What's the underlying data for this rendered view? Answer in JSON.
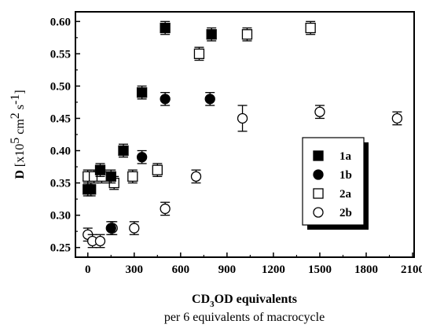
{
  "chart_data": {
    "type": "scatter",
    "title": "",
    "xlabel": "CD3OD equivalents",
    "xlabel_parts": {
      "pre": "CD",
      "sub": "3",
      "post": "OD equivalents"
    },
    "xlabel_note": "per 6 equivalents of macrocycle",
    "ylabel_parts": {
      "main": "D ",
      "open": "[x10",
      "exp": "5",
      "unit": " cm",
      "exp2": "2",
      "unit2": " s",
      "exp3": "-1",
      "close": "]"
    },
    "xlim": [
      -80,
      2110
    ],
    "ylim": [
      0.235,
      0.615
    ],
    "xticks": [
      0,
      300,
      600,
      900,
      1200,
      1500,
      1800,
      2100
    ],
    "xtick_labels": [
      "0",
      "300",
      "600",
      "900",
      "1200",
      "1500",
      "1800",
      "2100"
    ],
    "yticks": [
      0.25,
      0.3,
      0.35,
      0.4,
      0.45,
      0.5,
      0.55,
      0.6
    ],
    "ytick_labels": [
      "0.25",
      "0.30",
      "0.35",
      "0.40",
      "0.45",
      "0.50",
      "0.55",
      "0.60"
    ],
    "legend_position": "right",
    "series": [
      {
        "name": "1a",
        "marker": "filled-square",
        "x": [
          0,
          20,
          80,
          150,
          230,
          350,
          500,
          800
        ],
        "y": [
          0.34,
          0.34,
          0.37,
          0.36,
          0.4,
          0.49,
          0.59,
          0.58
        ],
        "err": [
          0.01,
          0.01,
          0.01,
          0.01,
          0.01,
          0.01,
          0.01,
          0.01
        ]
      },
      {
        "name": "1b",
        "marker": "filled-circle",
        "x": [
          150,
          350,
          500,
          790
        ],
        "y": [
          0.28,
          0.39,
          0.48,
          0.48
        ],
        "err": [
          0.01,
          0.01,
          0.01,
          0.01
        ]
      },
      {
        "name": "2a",
        "marker": "open-square",
        "x": [
          0,
          40,
          90,
          170,
          290,
          450,
          720,
          1030,
          1440
        ],
        "y": [
          0.36,
          0.36,
          0.36,
          0.35,
          0.36,
          0.37,
          0.55,
          0.58,
          0.59
        ],
        "err": [
          0.01,
          0.01,
          0.01,
          0.01,
          0.01,
          0.01,
          0.01,
          0.01,
          0.01
        ]
      },
      {
        "name": "2b",
        "marker": "open-circle",
        "x": [
          0,
          30,
          80,
          160,
          300,
          500,
          700,
          1000,
          1500,
          2000
        ],
        "y": [
          0.27,
          0.26,
          0.26,
          0.28,
          0.28,
          0.31,
          0.36,
          0.45,
          0.46,
          0.45
        ],
        "err": [
          0.01,
          0.01,
          0.01,
          0.01,
          0.01,
          0.01,
          0.01,
          0.02,
          0.01,
          0.01
        ]
      }
    ]
  }
}
